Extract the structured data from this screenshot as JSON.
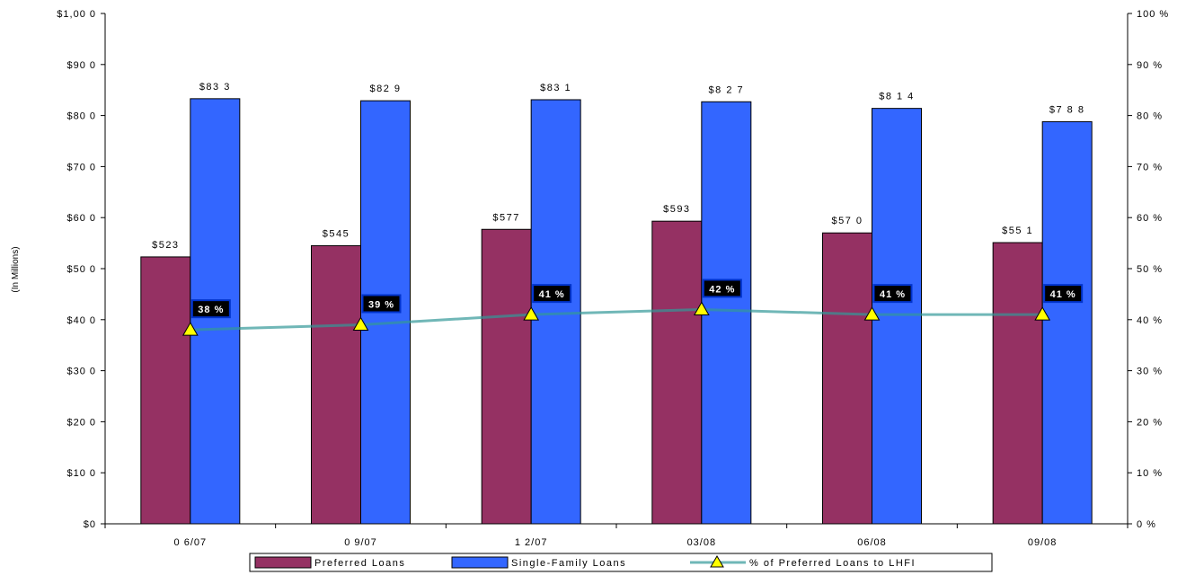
{
  "chart_data": {
    "type": "bar",
    "categories": [
      "0 6/07",
      "0 9/07",
      "1 2/07",
      "03/08",
      "06/08",
      "09/08"
    ],
    "series": [
      {
        "name": "Preferred Loans",
        "kind": "bar",
        "axis": "left",
        "color": "#953163",
        "values": [
          523,
          545,
          577,
          593,
          570,
          551
        ],
        "labels": [
          "$523",
          "$545",
          "$577",
          "$593",
          "$57 0",
          "$55 1"
        ]
      },
      {
        "name": "Single-Family Loans",
        "kind": "bar",
        "axis": "left",
        "color": "#3366ff",
        "values": [
          833,
          829,
          831,
          827,
          814,
          788
        ],
        "labels": [
          "$83 3",
          "$82 9",
          "$83 1",
          "$8 2 7",
          "$8 1 4",
          "$7 8 8"
        ]
      },
      {
        "name": "% of Preferred Loans to LHFI",
        "kind": "line",
        "axis": "right",
        "color": "#339999",
        "marker": "triangle",
        "marker_color": "#ffff00",
        "values": [
          38,
          39,
          41,
          42,
          41,
          41
        ],
        "labels": [
          "38 %",
          "39 %",
          "41 %",
          "42 %",
          "41 %",
          "41 %"
        ]
      }
    ],
    "ylabel": "(In Millions)",
    "ylim": [
      0,
      1000
    ],
    "y2lim": [
      0,
      100
    ],
    "yticks": [
      "$0",
      "$10 0",
      "$20 0",
      "$30 0",
      "$40 0",
      "$50 0",
      "$60 0",
      "$70 0",
      "$80 0",
      "$90 0",
      "$1,00 0"
    ],
    "y2ticks": [
      "0 %",
      "10 %",
      "20 %",
      "30 %",
      "40 %",
      "50 %",
      "60 %",
      "70 %",
      "80 %",
      "90 %",
      "100 %"
    ],
    "grid": false,
    "legend": "bottom"
  }
}
